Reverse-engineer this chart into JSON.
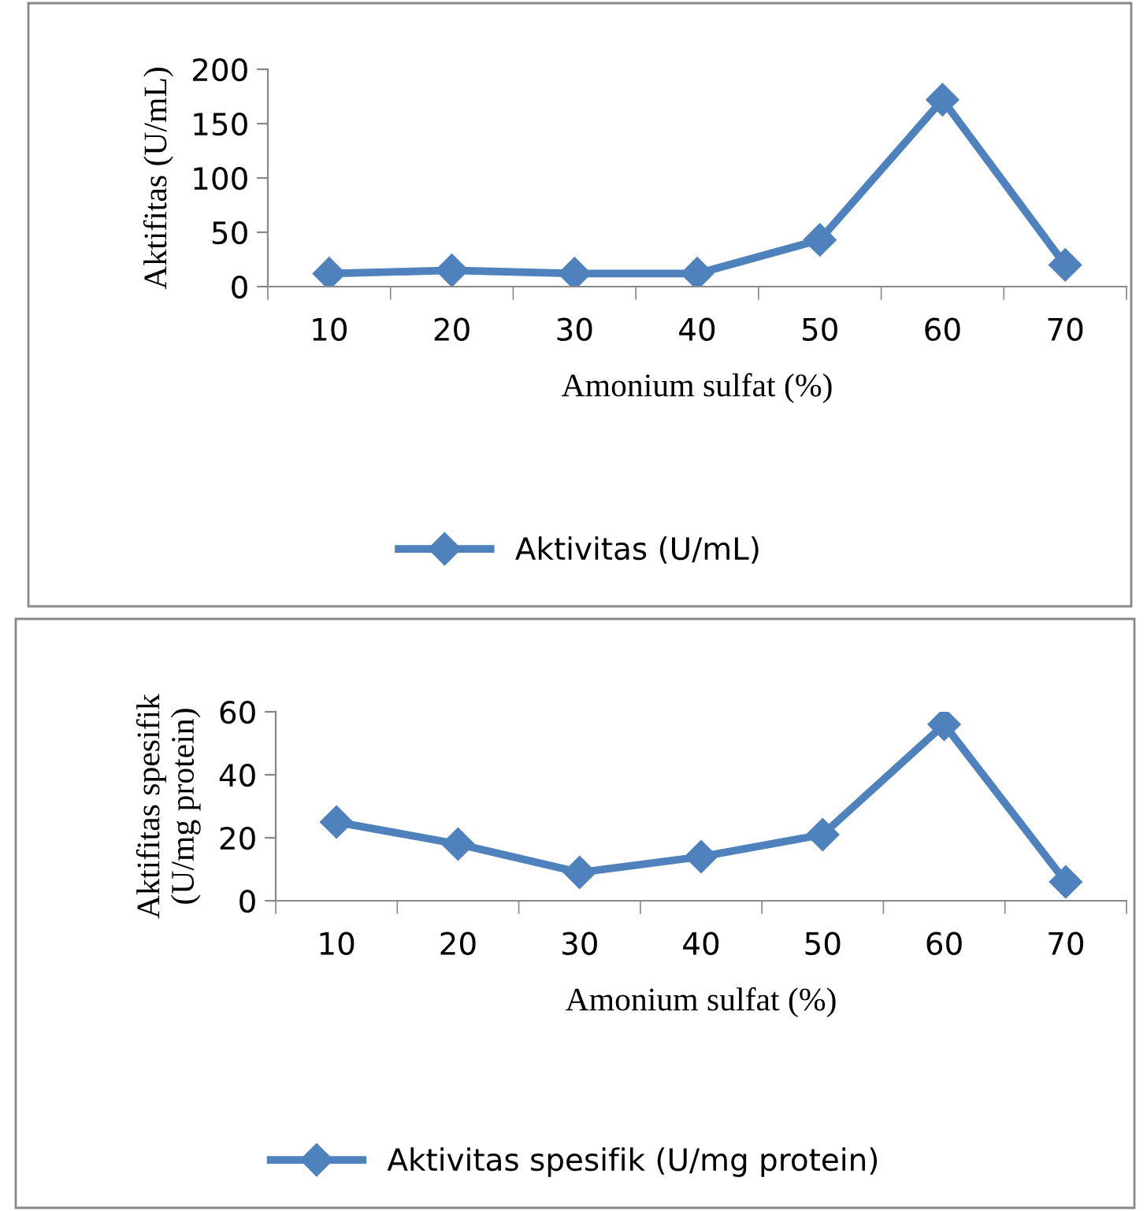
{
  "chart_data": [
    {
      "type": "line",
      "xlabel": "Amonium sulfat (%)",
      "ylabel": "Aktifitas (U/mL)",
      "categories": [
        "10",
        "20",
        "30",
        "40",
        "50",
        "60",
        "70"
      ],
      "series": [
        {
          "name": "Aktivitas (U/mL)",
          "color": "#4f81bd",
          "values": [
            12,
            15,
            12,
            12,
            43,
            172,
            20
          ]
        }
      ],
      "ylim": [
        0,
        200
      ],
      "yticks": [
        0,
        50,
        100,
        150,
        200
      ],
      "grid": false,
      "legend": "bottom",
      "marker": "diamond",
      "line_style": "solid"
    },
    {
      "type": "line",
      "xlabel": "Amonium sulfat (%)",
      "ylabel": "Aktifitas spesifik\n(U/mg protein)",
      "categories": [
        "10",
        "20",
        "30",
        "40",
        "50",
        "60",
        "70"
      ],
      "series": [
        {
          "name": "Aktivitas spesifik (U/mg protein)",
          "color": "#4f81bd",
          "values": [
            25,
            18,
            9,
            14,
            21,
            56,
            6
          ]
        }
      ],
      "ylim": [
        0,
        60
      ],
      "yticks": [
        0,
        20,
        40,
        60
      ],
      "grid": false,
      "legend": "bottom",
      "marker": "diamond",
      "line_style": "solid"
    }
  ]
}
